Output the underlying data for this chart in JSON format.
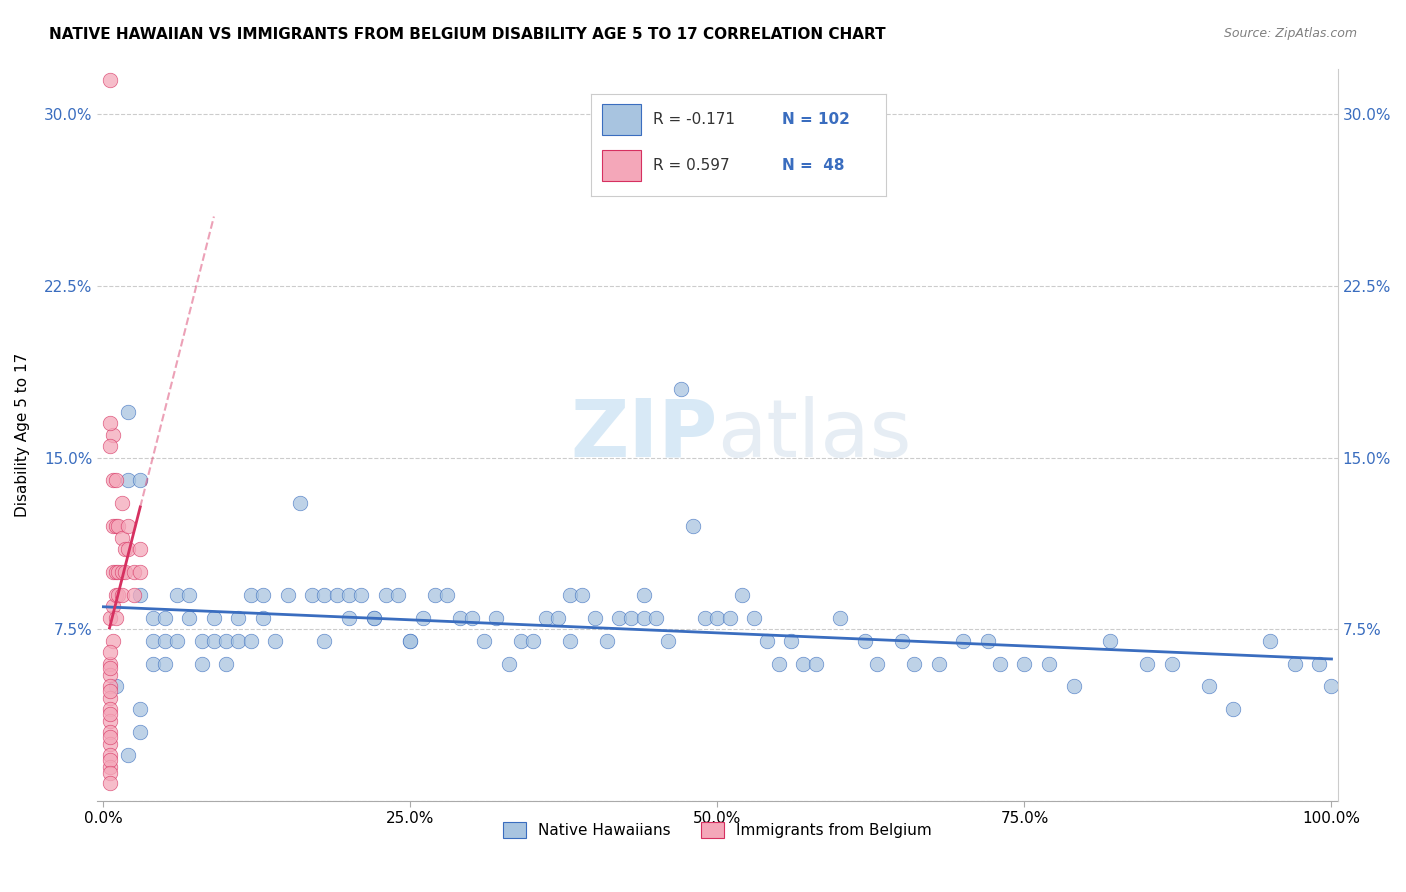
{
  "title": "NATIVE HAWAIIAN VS IMMIGRANTS FROM BELGIUM DISABILITY AGE 5 TO 17 CORRELATION CHART",
  "source": "Source: ZipAtlas.com",
  "ylabel": "Disability Age 5 to 17",
  "r_blue": -0.171,
  "n_blue": 102,
  "r_pink": 0.597,
  "n_pink": 48,
  "blue_color": "#a8c4e0",
  "pink_color": "#f4a7b9",
  "trend_blue_color": "#3a6dbf",
  "trend_pink_color": "#d63060",
  "watermark_zip": "ZIP",
  "watermark_atlas": "atlas",
  "xlim": [
    0.0,
    1.0
  ],
  "ylim": [
    0.0,
    0.32
  ],
  "yticks": [
    0.0,
    0.075,
    0.15,
    0.225,
    0.3
  ],
  "ytick_labels": [
    "",
    "7.5%",
    "15.0%",
    "22.5%",
    "30.0%"
  ],
  "xticks": [
    0.0,
    0.25,
    0.5,
    0.75,
    1.0
  ],
  "xtick_labels": [
    "0.0%",
    "25.0%",
    "50.0%",
    "75.0%",
    "100.0%"
  ],
  "blue_x": [
    0.01,
    0.02,
    0.02,
    0.03,
    0.03,
    0.03,
    0.04,
    0.04,
    0.04,
    0.05,
    0.05,
    0.05,
    0.06,
    0.06,
    0.07,
    0.07,
    0.08,
    0.08,
    0.09,
    0.09,
    0.1,
    0.1,
    0.11,
    0.11,
    0.12,
    0.12,
    0.13,
    0.13,
    0.14,
    0.15,
    0.16,
    0.17,
    0.18,
    0.18,
    0.19,
    0.2,
    0.2,
    0.21,
    0.22,
    0.22,
    0.23,
    0.24,
    0.25,
    0.25,
    0.26,
    0.27,
    0.28,
    0.29,
    0.3,
    0.31,
    0.32,
    0.33,
    0.34,
    0.35,
    0.36,
    0.37,
    0.38,
    0.38,
    0.39,
    0.4,
    0.41,
    0.42,
    0.43,
    0.44,
    0.44,
    0.45,
    0.46,
    0.47,
    0.48,
    0.49,
    0.5,
    0.51,
    0.52,
    0.53,
    0.54,
    0.55,
    0.56,
    0.57,
    0.58,
    0.6,
    0.62,
    0.63,
    0.65,
    0.66,
    0.68,
    0.7,
    0.72,
    0.73,
    0.75,
    0.77,
    0.79,
    0.82,
    0.85,
    0.87,
    0.9,
    0.92,
    0.95,
    0.97,
    0.99,
    1.0,
    0.03,
    0.02
  ],
  "blue_y": [
    0.05,
    0.17,
    0.14,
    0.14,
    0.09,
    0.04,
    0.08,
    0.07,
    0.06,
    0.08,
    0.07,
    0.06,
    0.09,
    0.07,
    0.09,
    0.08,
    0.07,
    0.06,
    0.08,
    0.07,
    0.07,
    0.06,
    0.08,
    0.07,
    0.09,
    0.07,
    0.09,
    0.08,
    0.07,
    0.09,
    0.13,
    0.09,
    0.09,
    0.07,
    0.09,
    0.09,
    0.08,
    0.09,
    0.08,
    0.08,
    0.09,
    0.09,
    0.07,
    0.07,
    0.08,
    0.09,
    0.09,
    0.08,
    0.08,
    0.07,
    0.08,
    0.06,
    0.07,
    0.07,
    0.08,
    0.08,
    0.07,
    0.09,
    0.09,
    0.08,
    0.07,
    0.08,
    0.08,
    0.08,
    0.09,
    0.08,
    0.07,
    0.18,
    0.12,
    0.08,
    0.08,
    0.08,
    0.09,
    0.08,
    0.07,
    0.06,
    0.07,
    0.06,
    0.06,
    0.08,
    0.07,
    0.06,
    0.07,
    0.06,
    0.06,
    0.07,
    0.07,
    0.06,
    0.06,
    0.06,
    0.05,
    0.07,
    0.06,
    0.06,
    0.05,
    0.04,
    0.07,
    0.06,
    0.06,
    0.05,
    0.03,
    0.02
  ],
  "pink_x": [
    0.005,
    0.005,
    0.005,
    0.005,
    0.005,
    0.005,
    0.005,
    0.005,
    0.005,
    0.005,
    0.005,
    0.005,
    0.008,
    0.008,
    0.008,
    0.008,
    0.008,
    0.008,
    0.01,
    0.01,
    0.01,
    0.01,
    0.01,
    0.012,
    0.012,
    0.012,
    0.015,
    0.015,
    0.015,
    0.015,
    0.018,
    0.018,
    0.02,
    0.02,
    0.025,
    0.025,
    0.03,
    0.03,
    0.005,
    0.005,
    0.005,
    0.005,
    0.005,
    0.005,
    0.005,
    0.005,
    0.005,
    0.005
  ],
  "pink_y": [
    0.315,
    0.08,
    0.06,
    0.055,
    0.05,
    0.045,
    0.04,
    0.035,
    0.03,
    0.025,
    0.02,
    0.015,
    0.16,
    0.14,
    0.12,
    0.1,
    0.085,
    0.07,
    0.14,
    0.12,
    0.1,
    0.09,
    0.08,
    0.12,
    0.1,
    0.09,
    0.13,
    0.115,
    0.1,
    0.09,
    0.11,
    0.1,
    0.12,
    0.11,
    0.1,
    0.09,
    0.11,
    0.1,
    0.165,
    0.155,
    0.065,
    0.058,
    0.048,
    0.038,
    0.028,
    0.018,
    0.012,
    0.008
  ]
}
